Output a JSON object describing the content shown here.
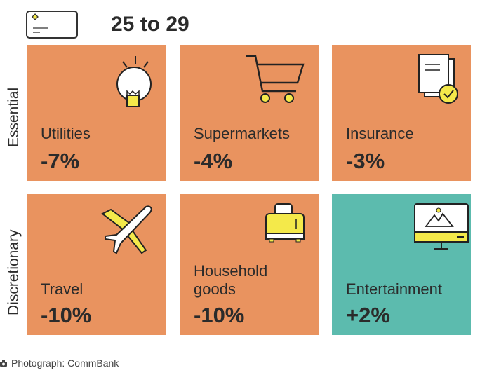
{
  "title": "25 to 29",
  "rows": [
    {
      "label": "Essential"
    },
    {
      "label": "Discretionary"
    }
  ],
  "tiles": [
    {
      "name": "Utilities",
      "value": "-7%",
      "icon": "lightbulb-icon",
      "color": "#E9935F"
    },
    {
      "name": "Supermarkets",
      "value": "-4%",
      "icon": "shopping-cart-icon",
      "color": "#E9935F"
    },
    {
      "name": "Insurance",
      "value": "-3%",
      "icon": "document-check-icon",
      "color": "#E9935F"
    },
    {
      "name": "Travel",
      "value": "-10%",
      "icon": "airplane-icon",
      "color": "#E9935F"
    },
    {
      "name": "Household",
      "name2": "goods",
      "value": "-10%",
      "icon": "toaster-icon",
      "color": "#E9935F"
    },
    {
      "name": "Entertainment",
      "value": "+2%",
      "icon": "monitor-icon",
      "color": "#5CBBAE"
    }
  ],
  "caption": "Photograph: CommBank"
}
